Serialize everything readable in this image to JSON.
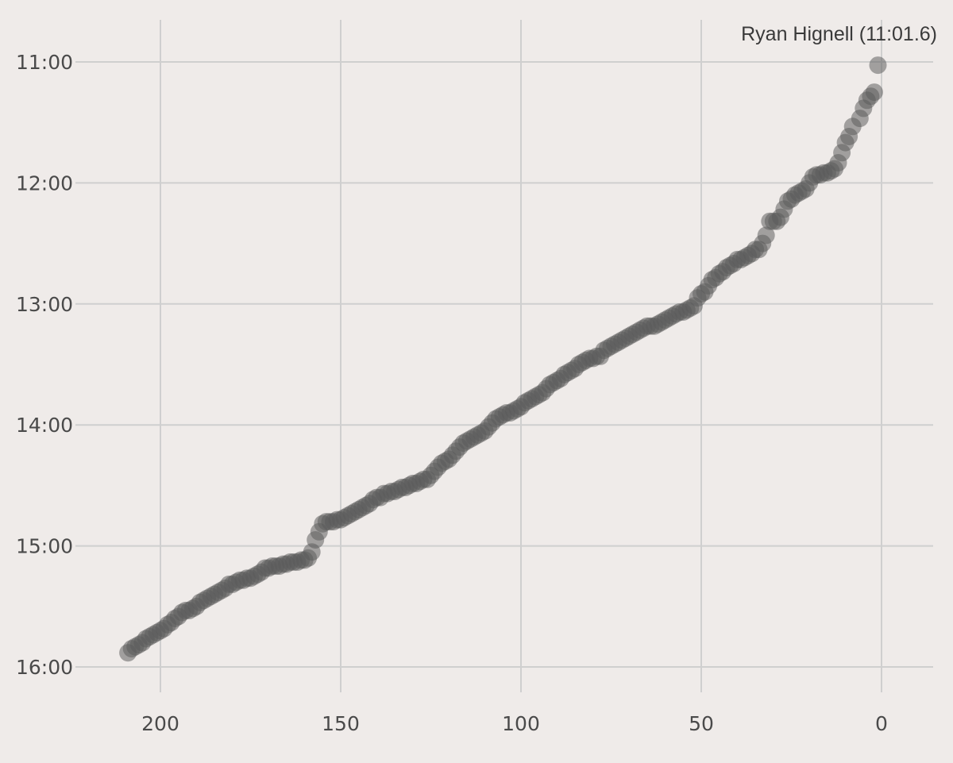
{
  "chart_data": {
    "type": "scatter",
    "title": "",
    "xlabel": "",
    "ylabel": "",
    "x_reversed": true,
    "y_reversed": true,
    "xlim": [
      222,
      -14
    ],
    "ylim_seconds": [
      648,
      986
    ],
    "x_ticks": [
      200,
      150,
      100,
      50,
      0
    ],
    "x_tick_labels": [
      "200",
      "150",
      "100",
      "50",
      "0"
    ],
    "y_ticks_seconds": [
      660,
      720,
      780,
      840,
      900,
      960
    ],
    "y_tick_labels": [
      "11:00",
      "12:00",
      "13:00",
      "14:00",
      "15:00",
      "16:00"
    ],
    "grid": true,
    "point_color": "#5b5b5b",
    "point_opacity": 0.52,
    "annotation": {
      "text": "Ryan Hignell (11:01.6)",
      "x": 1,
      "y_seconds": 661.6
    },
    "series": [
      {
        "points": [
          [
            1,
            661.6
          ],
          [
            2,
            675
          ],
          [
            3,
            677
          ],
          [
            4,
            679
          ],
          [
            5,
            683
          ],
          [
            6,
            688
          ],
          [
            8,
            692
          ],
          [
            9,
            697
          ],
          [
            10,
            700
          ],
          [
            11,
            705
          ],
          [
            12,
            710
          ],
          [
            13,
            713
          ],
          [
            14,
            714
          ],
          [
            15,
            715
          ],
          [
            16,
            715
          ],
          [
            17,
            716
          ],
          [
            18,
            716
          ],
          [
            19,
            717
          ],
          [
            20,
            720
          ],
          [
            21,
            723
          ],
          [
            22,
            724
          ],
          [
            23,
            725
          ],
          [
            24,
            726
          ],
          [
            25,
            728
          ],
          [
            26,
            729
          ],
          [
            27,
            733
          ],
          [
            28,
            737
          ],
          [
            29,
            739
          ],
          [
            30,
            739
          ],
          [
            31,
            739
          ],
          [
            32,
            746
          ],
          [
            33,
            750
          ],
          [
            34,
            753
          ],
          [
            35,
            753
          ],
          [
            36,
            755
          ],
          [
            37,
            756
          ],
          [
            38,
            757
          ],
          [
            39,
            758
          ],
          [
            40,
            758
          ],
          [
            41,
            760
          ],
          [
            42,
            761
          ],
          [
            43,
            762
          ],
          [
            44,
            764
          ],
          [
            45,
            765
          ],
          [
            46,
            767
          ],
          [
            47,
            768
          ],
          [
            48,
            771
          ],
          [
            49,
            774
          ],
          [
            50,
            775
          ],
          [
            51,
            777
          ],
          [
            52,
            781
          ],
          [
            53,
            782
          ],
          [
            54,
            783
          ],
          [
            55,
            784
          ],
          [
            56,
            784
          ],
          [
            57,
            785
          ],
          [
            58,
            786
          ],
          [
            59,
            787
          ],
          [
            60,
            788
          ],
          [
            61,
            789
          ],
          [
            62,
            790
          ],
          [
            63,
            791
          ],
          [
            64,
            791
          ],
          [
            65,
            791
          ],
          [
            66,
            792
          ],
          [
            67,
            793
          ],
          [
            68,
            794
          ],
          [
            69,
            795
          ],
          [
            70,
            796
          ],
          [
            71,
            797
          ],
          [
            72,
            798
          ],
          [
            73,
            799
          ],
          [
            74,
            800
          ],
          [
            75,
            801
          ],
          [
            76,
            802
          ],
          [
            77,
            803
          ],
          [
            78,
            806
          ],
          [
            79,
            806
          ],
          [
            80,
            807
          ],
          [
            81,
            807
          ],
          [
            82,
            808
          ],
          [
            83,
            809
          ],
          [
            84,
            810
          ],
          [
            85,
            812
          ],
          [
            86,
            813
          ],
          [
            87,
            814
          ],
          [
            88,
            815
          ],
          [
            89,
            817
          ],
          [
            90,
            818
          ],
          [
            91,
            819
          ],
          [
            92,
            820
          ],
          [
            93,
            822
          ],
          [
            94,
            824
          ],
          [
            95,
            825
          ],
          [
            96,
            826
          ],
          [
            97,
            827
          ],
          [
            98,
            828
          ],
          [
            99,
            829
          ],
          [
            100,
            831
          ],
          [
            101,
            832
          ],
          [
            102,
            833
          ],
          [
            103,
            834
          ],
          [
            104,
            834
          ],
          [
            105,
            835
          ],
          [
            106,
            836
          ],
          [
            107,
            837
          ],
          [
            108,
            839
          ],
          [
            109,
            841
          ],
          [
            110,
            843
          ],
          [
            111,
            844
          ],
          [
            112,
            845
          ],
          [
            113,
            846
          ],
          [
            114,
            847
          ],
          [
            115,
            848
          ],
          [
            116,
            849
          ],
          [
            117,
            851
          ],
          [
            118,
            853
          ],
          [
            119,
            855
          ],
          [
            120,
            857
          ],
          [
            121,
            858
          ],
          [
            122,
            859
          ],
          [
            123,
            861
          ],
          [
            124,
            863
          ],
          [
            125,
            865
          ],
          [
            126,
            867
          ],
          [
            127,
            867
          ],
          [
            128,
            868
          ],
          [
            129,
            869
          ],
          [
            130,
            869
          ],
          [
            131,
            870
          ],
          [
            132,
            871
          ],
          [
            133,
            871
          ],
          [
            134,
            872
          ],
          [
            135,
            873
          ],
          [
            136,
            873
          ],
          [
            137,
            874
          ],
          [
            138,
            874
          ],
          [
            139,
            876
          ],
          [
            140,
            876
          ],
          [
            141,
            877
          ],
          [
            142,
            879
          ],
          [
            143,
            880
          ],
          [
            144,
            881
          ],
          [
            145,
            882
          ],
          [
            146,
            883
          ],
          [
            147,
            884
          ],
          [
            148,
            885
          ],
          [
            149,
            886
          ],
          [
            150,
            887
          ],
          [
            151,
            887
          ],
          [
            152,
            888
          ],
          [
            153,
            888
          ],
          [
            154,
            888
          ],
          [
            155,
            889
          ],
          [
            156,
            893
          ],
          [
            157,
            897
          ],
          [
            158,
            903
          ],
          [
            159,
            906
          ],
          [
            160,
            907
          ],
          [
            161,
            907
          ],
          [
            162,
            908
          ],
          [
            163,
            908
          ],
          [
            164,
            908
          ],
          [
            165,
            909
          ],
          [
            166,
            909
          ],
          [
            167,
            910
          ],
          [
            168,
            910
          ],
          [
            169,
            910
          ],
          [
            170,
            911
          ],
          [
            171,
            911
          ],
          [
            172,
            913
          ],
          [
            173,
            914
          ],
          [
            174,
            915
          ],
          [
            175,
            916
          ],
          [
            176,
            916
          ],
          [
            177,
            917
          ],
          [
            178,
            917
          ],
          [
            179,
            918
          ],
          [
            180,
            919
          ],
          [
            181,
            919
          ],
          [
            182,
            921
          ],
          [
            183,
            922
          ],
          [
            184,
            923
          ],
          [
            185,
            924
          ],
          [
            186,
            925
          ],
          [
            187,
            926
          ],
          [
            188,
            927
          ],
          [
            189,
            928
          ],
          [
            190,
            930
          ],
          [
            191,
            931
          ],
          [
            192,
            932
          ],
          [
            193,
            932
          ],
          [
            194,
            933
          ],
          [
            195,
            935
          ],
          [
            196,
            936
          ],
          [
            197,
            938
          ],
          [
            198,
            939
          ],
          [
            199,
            941
          ],
          [
            200,
            942
          ],
          [
            201,
            943
          ],
          [
            202,
            944
          ],
          [
            203,
            945
          ],
          [
            204,
            946
          ],
          [
            205,
            948
          ],
          [
            206,
            949
          ],
          [
            207,
            950
          ],
          [
            208,
            951
          ],
          [
            209,
            953
          ]
        ]
      }
    ]
  }
}
